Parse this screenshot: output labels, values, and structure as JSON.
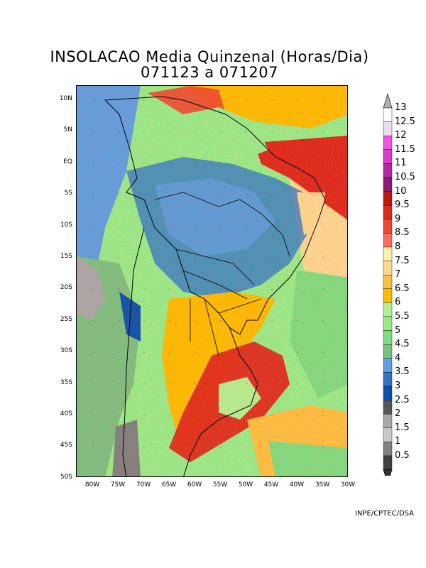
{
  "title": {
    "line1": "INSOLACAO Media Quinzenal  (Horas/Dia)",
    "line2": "071123  a  071207"
  },
  "axes": {
    "latitudes": [
      "10N",
      "5N",
      "EQ",
      "5S",
      "10S",
      "15S",
      "20S",
      "25S",
      "30S",
      "35S",
      "40S",
      "45S",
      "50S"
    ],
    "longitudes": [
      "80W",
      "75W",
      "70W",
      "65W",
      "60W",
      "55W",
      "50W",
      "45W",
      "40W",
      "35W",
      "30W"
    ]
  },
  "colorbar": {
    "labels": [
      "13",
      "12.5",
      "12",
      "11.5",
      "11",
      "10.5",
      "10",
      "9.5",
      "9",
      "8.5",
      "8",
      "7.5",
      "7",
      "6.5",
      "6",
      "5.5",
      "5",
      "4.5",
      "4",
      "3.5",
      "3",
      "2.5",
      "2",
      "1.5",
      "1",
      "0.5"
    ],
    "colors": [
      "#ffffff",
      "#e9dff2",
      "#f055e0",
      "#d83ec8",
      "#b02c9e",
      "#8c1c74",
      "#c01810",
      "#dd2a1a",
      "#ee4830",
      "#fa7060",
      "#faf0a8",
      "#fcd890",
      "#fcc040",
      "#fcbc00",
      "#b4f090",
      "#98ec88",
      "#80dc80",
      "#7cc080",
      "#5f9fe0",
      "#2e74c8",
      "#0c52aa",
      "#585858",
      "#a8a8a8",
      "#c8c8c8",
      "#808080",
      "#404040"
    ]
  },
  "credit": "INPE/CPTEC/DSA"
}
